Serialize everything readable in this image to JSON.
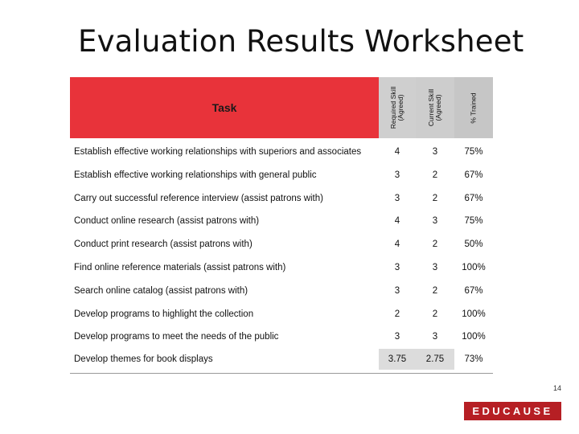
{
  "title": "Evaluation Results Worksheet",
  "table": {
    "headers": {
      "task": "Task",
      "required_line1": "Required Skill",
      "required_line2": "(Agreed)",
      "current_line1": "Current Skill",
      "current_line2": "(Agreed)",
      "trained": "% Trained"
    },
    "rows": [
      {
        "task": "Establish effective working relationships with superiors and associates",
        "required": "4",
        "current": "3",
        "trained": "75%"
      },
      {
        "task": "Establish effective working relationships with general public",
        "required": "3",
        "current": "2",
        "trained": "67%"
      },
      {
        "task": "Carry out successful reference interview  (assist patrons with)",
        "required": "3",
        "current": "2",
        "trained": "67%"
      },
      {
        "task": "Conduct online research  (assist patrons with)",
        "required": "4",
        "current": "3",
        "trained": "75%"
      },
      {
        "task": "Conduct print research (assist patrons with)",
        "required": "4",
        "current": "2",
        "trained": "50%"
      },
      {
        "task": "Find online reference materials  (assist patrons with)",
        "required": "3",
        "current": "3",
        "trained": "100%"
      },
      {
        "task": "Search online catalog  (assist patrons with)",
        "required": "3",
        "current": "2",
        "trained": "67%"
      },
      {
        "task": "Develop programs to highlight the collection",
        "required": "2",
        "current": "2",
        "trained": "100%"
      },
      {
        "task": "Develop programs to meet the needs of the public",
        "required": "3",
        "current": "3",
        "trained": "100%"
      },
      {
        "task": "Develop themes for book displays",
        "required": "3.75",
        "current": "2.75",
        "trained": "73%"
      }
    ]
  },
  "footer": {
    "page_number": "14",
    "logo_text": "EDUCAUSE"
  },
  "colors": {
    "header_red": "#e8333a",
    "header_gray": "#c9c9c9",
    "logo_red": "#b61f24"
  }
}
